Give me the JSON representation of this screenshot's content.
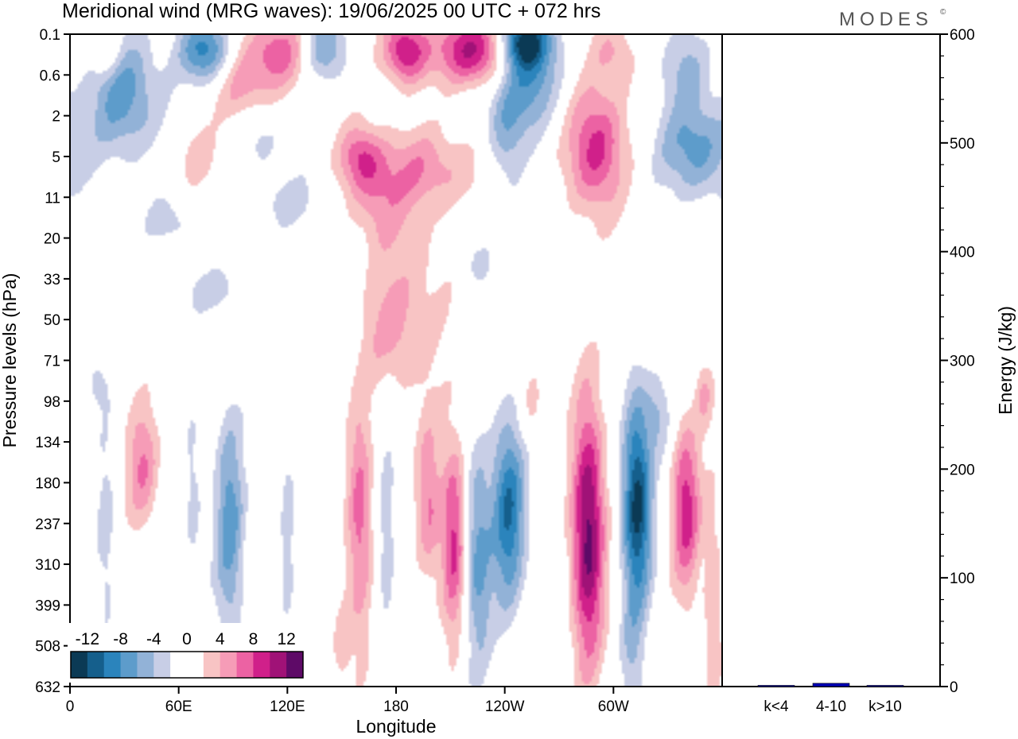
{
  "title": "Meridional wind (MRG waves):  19/06/2025  00 UTC  + 072 hrs",
  "brand": "MODES",
  "brand_mark": "©",
  "chart_data": [
    {
      "type": "heatmap",
      "title": "Meridional wind (MRG waves):  19/06/2025  00 UTC  + 072 hrs",
      "xlabel": "Longitude",
      "ylabel": "Pressure levels (hPa)",
      "x_ticks": [
        "0",
        "60E",
        "120E",
        "180",
        "120W",
        "60W"
      ],
      "y_ticks": [
        "0.1",
        "0.6",
        "2",
        "5",
        "11",
        "20",
        "33",
        "50",
        "71",
        "98",
        "134",
        "180",
        "237",
        "310",
        "399",
        "508",
        "632"
      ],
      "colorbar_labels": [
        "-12",
        "-8",
        "-4",
        "0",
        "4",
        "8",
        "12"
      ],
      "colorbar_colors": [
        "#0b3a55",
        "#155f8c",
        "#2b84bc",
        "#5d9ccb",
        "#92b2d7",
        "#c8cee6",
        "#ffffff",
        "#ffffff",
        "#f8c4c4",
        "#f69cb7",
        "#ec62a3",
        "#d0208a",
        "#a01277",
        "#5e0a67"
      ],
      "features": [
        {
          "lon": 242,
          "plev_index": 11.7,
          "v": -10,
          "width_deg": 9,
          "height_levels": 2.3
        },
        {
          "lon": 286,
          "plev_index": 12.2,
          "v": 13,
          "width_deg": 9,
          "height_levels": 3.2
        },
        {
          "lon": 313,
          "plev_index": 11.5,
          "v": -13,
          "width_deg": 8,
          "height_levels": 2.6
        },
        {
          "lon": 340,
          "plev_index": 11.6,
          "v": 9,
          "width_deg": 8,
          "height_levels": 2.1
        },
        {
          "lon": 225,
          "plev_index": 12.8,
          "v": -7,
          "width_deg": 8,
          "height_levels": 2.7
        },
        {
          "lon": 212,
          "plev_index": 12.3,
          "v": 9,
          "width_deg": 7,
          "height_levels": 2.4
        },
        {
          "lon": 198,
          "plev_index": 11.5,
          "v": 6,
          "width_deg": 7,
          "height_levels": 2.0
        },
        {
          "lon": 160,
          "plev_index": 12.0,
          "v": 7,
          "width_deg": 7,
          "height_levels": 3.0
        },
        {
          "lon": 175,
          "plev_index": 12.5,
          "v": -4,
          "width_deg": 4,
          "height_levels": 2.6
        },
        {
          "lon": 88,
          "plev_index": 12.0,
          "v": -7,
          "width_deg": 8,
          "height_levels": 2.8
        },
        {
          "lon": 40,
          "plev_index": 10.6,
          "v": 6,
          "width_deg": 9,
          "height_levels": 1.6
        },
        {
          "lon": 68,
          "plev_index": 11.4,
          "v": -3,
          "width_deg": 5,
          "height_levels": 2.2
        },
        {
          "lon": 120,
          "plev_index": 12.0,
          "v": -3,
          "width_deg": 4,
          "height_levels": 2.4
        },
        {
          "lon": 55,
          "plev_index": 14.5,
          "v": -2,
          "width_deg": 5,
          "height_levels": 2.0
        },
        {
          "lon": 355,
          "plev_index": 14.0,
          "v": 4,
          "width_deg": 5,
          "height_levels": 3.0
        },
        {
          "lon": 20,
          "plev_index": 12.5,
          "v": -3,
          "width_deg": 6,
          "height_levels": 3.0
        },
        {
          "lon": 255,
          "plev_index": 9.0,
          "v": 3,
          "width_deg": 6,
          "height_levels": 1.0
        },
        {
          "lon": 325,
          "plev_index": 9.3,
          "v": -4,
          "width_deg": 7,
          "height_levels": 1.0
        },
        {
          "lon": 350,
          "plev_index": 8.8,
          "v": 4,
          "width_deg": 5,
          "height_levels": 0.8
        },
        {
          "lon": 310,
          "plev_index": 15.3,
          "v": -3,
          "width_deg": 6,
          "height_levels": 1.4
        },
        {
          "lon": 150,
          "plev_index": 15.0,
          "v": 3,
          "width_deg": 6,
          "height_levels": 1.5
        },
        {
          "lon": 190,
          "plev_index": 6.5,
          "v": 3,
          "width_deg": 22,
          "height_levels": 2.4
        },
        {
          "lon": 175,
          "plev_index": 7.3,
          "v": 3,
          "width_deg": 14,
          "height_levels": 1.4
        },
        {
          "lon": 80,
          "plev_index": 6.3,
          "v": -2.6,
          "width_deg": 30,
          "height_levels": 0.6
        },
        {
          "lon": 225,
          "plev_index": 5.6,
          "v": -3,
          "width_deg": 8,
          "height_levels": 0.6
        },
        {
          "lon": 15,
          "plev_index": 8.6,
          "v": -3,
          "width_deg": 6,
          "height_levels": 0.6
        },
        {
          "lon": 195,
          "plev_index": 3.3,
          "v": 5,
          "width_deg": 32,
          "height_levels": 1.0
        },
        {
          "lon": 170,
          "plev_index": 4.2,
          "v": 4,
          "width_deg": 14,
          "height_levels": 1.2
        },
        {
          "lon": 160,
          "plev_index": 3.0,
          "v": 6,
          "width_deg": 12,
          "height_levels": 0.8
        },
        {
          "lon": 30,
          "plev_index": 1.5,
          "v": -7,
          "width_deg": 20,
          "height_levels": 1.5
        },
        {
          "lon": 105,
          "plev_index": 2.5,
          "v": -3,
          "width_deg": 14,
          "height_levels": 0.8
        },
        {
          "lon": 95,
          "plev_index": 1.3,
          "v": 5,
          "width_deg": 16,
          "height_levels": 1.0
        },
        {
          "lon": 70,
          "plev_index": 3.0,
          "v": 3,
          "width_deg": 12,
          "height_levels": 0.8
        },
        {
          "lon": 290,
          "plev_index": 2.8,
          "v": 9,
          "width_deg": 16,
          "height_levels": 1.6
        },
        {
          "lon": 345,
          "plev_index": 2.8,
          "v": -7,
          "width_deg": 20,
          "height_levels": 1.2
        },
        {
          "lon": 250,
          "plev_index": 0.8,
          "v": -9,
          "width_deg": 20,
          "height_levels": 1.5
        },
        {
          "lon": 240,
          "plev_index": 2.6,
          "v": -4,
          "width_deg": 10,
          "height_levels": 1.2
        },
        {
          "lon": 225,
          "plev_index": 0.4,
          "v": 12,
          "width_deg": 22,
          "height_levels": 0.9
        },
        {
          "lon": 250,
          "plev_index": 0.2,
          "v": -10,
          "width_deg": 12,
          "height_levels": 0.6
        },
        {
          "lon": 185,
          "plev_index": 0.4,
          "v": 10,
          "width_deg": 12,
          "height_levels": 0.8
        },
        {
          "lon": 140,
          "plev_index": 0.3,
          "v": -6,
          "width_deg": 12,
          "height_levels": 0.8
        },
        {
          "lon": 115,
          "plev_index": 0.4,
          "v": 7,
          "width_deg": 16,
          "height_levels": 0.9
        },
        {
          "lon": 75,
          "plev_index": 0.4,
          "v": -9,
          "width_deg": 14,
          "height_levels": 0.8
        },
        {
          "lon": 20,
          "plev_index": 0.4,
          "v": 5,
          "width_deg": 8,
          "height_levels": 0.6
        },
        {
          "lon": 300,
          "plev_index": 0.4,
          "v": 4,
          "width_deg": 12,
          "height_levels": 0.8
        },
        {
          "lon": 340,
          "plev_index": 0.8,
          "v": -4,
          "width_deg": 14,
          "height_levels": 1.0
        },
        {
          "lon": 120,
          "plev_index": 4.1,
          "v": -3,
          "width_deg": 18,
          "height_levels": 0.7
        },
        {
          "lon": 55,
          "plev_index": 4.6,
          "v": -3,
          "width_deg": 14,
          "height_levels": 0.6
        }
      ]
    },
    {
      "type": "bar",
      "ylabel": "Energy (J/kg)",
      "categories": [
        "k<4",
        "4-10",
        "k>10"
      ],
      "values": [
        0.5,
        3,
        0.5
      ],
      "ylim": [
        0,
        600
      ],
      "y_ticks": [
        "0",
        "100",
        "200",
        "300",
        "400",
        "500",
        "600"
      ],
      "bar_color": "#0000b4"
    }
  ]
}
